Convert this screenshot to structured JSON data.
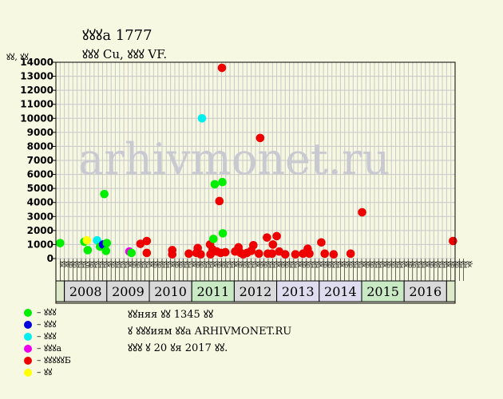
{
  "header": {
    "title": "ꙋꙋꙋa 1777",
    "subtitle": "ꙋꙋꙋ Cu, ꙋꙋꙋ VF."
  },
  "info": {
    "line1": "ꙋꙋняя ꙋꙋ 1345 ꙋꙋ",
    "line2": "ꙋ ꙋꙋꙋиям ꙋꙋа ARHIVMONET.RU",
    "line3": "ꙋꙋꙋ ꙋ 20 ꙋя 2017 ꙋꙋ."
  },
  "watermark": "arhivmonet.ru",
  "colors": {
    "background": "#f7f8e2",
    "plot_background": "#f7f8e2",
    "grid": "#c8c8c8",
    "year_band_a": "#dde9c8",
    "year_band_b": "#d6d6e8"
  },
  "legend": [
    {
      "label": "– ꙋꙋꙋ",
      "color": "#00ee00"
    },
    {
      "label": "– ꙋꙋꙋ",
      "color": "#0000dd"
    },
    {
      "label": "– ꙋꙋꙋ",
      "color": "#00eeee"
    },
    {
      "label": "– ꙋꙋꙋa",
      "color": "#ee00ee"
    },
    {
      "label": "– ꙋꙋꙋꙋꙋБ",
      "color": "#ee0000"
    },
    {
      "label": "– ꙋꙋ",
      "color": "#ffff00"
    }
  ],
  "chart_data": {
    "type": "scatter",
    "ylabel": "ꙋꙋ, ꙋꙋ",
    "ylim": [
      0,
      14000
    ],
    "yticks": [
      0,
      1000,
      2000,
      3000,
      4000,
      5000,
      6000,
      7000,
      8000,
      9000,
      10000,
      11000,
      12000,
      13000,
      14000
    ],
    "grid": true,
    "month_labels": [
      "ꙋк",
      "ꙋк",
      "ꙋр",
      "ꙋр",
      "ꙋн",
      "ꙋн",
      "ꙋл",
      "ꙋр",
      "ꙋн",
      "ꙋн",
      "ꙋн",
      "ꙋк",
      "ꙋр",
      "ꙋн",
      "ꙋн",
      "ꙋн",
      "ꙋк",
      "ꙋр",
      "ꙋр",
      "ꙋн",
      "ꙋн",
      "ꙋк",
      "ꙋр",
      "ꙋр",
      "ꙋн",
      "ꙋн",
      "ꙋк",
      "ꙋр",
      "ꙋр",
      "ꙋн",
      "ꙋн",
      "ꙋк",
      "ꙋр",
      "ꙋр",
      "ꙋн",
      "ꙋн",
      "ꙋк",
      "ꙋр",
      "ꙋр",
      "ꙋн",
      "ꙋн",
      "ꙋк",
      "ꙋр",
      "ꙋр",
      "ꙋн",
      "ꙋн",
      "ꙋк",
      "ꙋр",
      "ꙋр",
      "ꙋн",
      "ꙋн",
      "ꙋк",
      "ꙋр",
      "ꙋр",
      "ꙋн",
      "ꙋн",
      "ꙋк",
      "ꙋр",
      "ꙋр",
      "ꙋн",
      "ꙋн",
      "ꙋк",
      "ꙋр",
      "ꙋр",
      "ꙋн",
      "ꙋн",
      "ꙋк",
      "ꙋр",
      "ꙋр",
      "ꙋн",
      "ꙋн",
      "ꙋк",
      "ꙋр",
      "ꙋр",
      "ꙋн",
      "ꙋн",
      "ꙋк",
      "ꙋр",
      "ꙋр",
      "ꙋн",
      "ꙋн",
      "ꙋк",
      "ꙋр",
      "ꙋр",
      "ꙋн",
      "ꙋн",
      "ꙋк",
      "ꙋр",
      "ꙋр",
      "ꙋн",
      "ꙋн",
      "ꙋк",
      "ꙋр",
      "ꙋр",
      "ꙋн",
      "ꙋн",
      "ꙋк"
    ],
    "years": [
      {
        "label": "",
        "start": 0,
        "end": 2
      },
      {
        "label": "2008",
        "start": 2,
        "end": 12
      },
      {
        "label": "2009",
        "start": 12,
        "end": 22
      },
      {
        "label": "2010",
        "start": 22,
        "end": 32
      },
      {
        "label": "2011",
        "start": 32,
        "end": 42
      },
      {
        "label": "2012",
        "start": 42,
        "end": 52
      },
      {
        "label": "2013",
        "start": 52,
        "end": 62
      },
      {
        "label": "2014",
        "start": 62,
        "end": 72
      },
      {
        "label": "2015",
        "start": 72,
        "end": 82
      },
      {
        "label": "2016",
        "start": 82,
        "end": 92
      },
      {
        "label": "",
        "start": 92,
        "end": 94
      }
    ],
    "n_slots": 94,
    "points": [
      {
        "x": 0.5,
        "y": 1100,
        "cat": 0
      },
      {
        "x": 6.2,
        "y": 1200,
        "cat": 0
      },
      {
        "x": 7.0,
        "y": 600,
        "cat": 0
      },
      {
        "x": 6.8,
        "y": 1300,
        "cat": 5
      },
      {
        "x": 9.2,
        "y": 1300,
        "cat": 2
      },
      {
        "x": 9.9,
        "y": 850,
        "cat": 0
      },
      {
        "x": 10.6,
        "y": 1000,
        "cat": 1
      },
      {
        "x": 10.9,
        "y": 4600,
        "cat": 0
      },
      {
        "x": 11.5,
        "y": 1100,
        "cat": 0
      },
      {
        "x": 11.3,
        "y": 550,
        "cat": 0
      },
      {
        "x": 16.8,
        "y": 500,
        "cat": 3
      },
      {
        "x": 17.3,
        "y": 400,
        "cat": 0
      },
      {
        "x": 19.4,
        "y": 1050,
        "cat": 4
      },
      {
        "x": 20.9,
        "y": 1250,
        "cat": 4
      },
      {
        "x": 20.9,
        "y": 400,
        "cat": 4
      },
      {
        "x": 26.9,
        "y": 600,
        "cat": 4
      },
      {
        "x": 26.9,
        "y": 300,
        "cat": 4
      },
      {
        "x": 30.8,
        "y": 350,
        "cat": 4
      },
      {
        "x": 32.6,
        "y": 400,
        "cat": 4
      },
      {
        "x": 32.9,
        "y": 750,
        "cat": 4
      },
      {
        "x": 33.6,
        "y": 300,
        "cat": 4
      },
      {
        "x": 33.9,
        "y": 10000,
        "cat": 2
      },
      {
        "x": 35.8,
        "y": 1000,
        "cat": 4
      },
      {
        "x": 36.6,
        "y": 1400,
        "cat": 0
      },
      {
        "x": 36.4,
        "y": 650,
        "cat": 4
      },
      {
        "x": 35.9,
        "y": 300,
        "cat": 4
      },
      {
        "x": 36.9,
        "y": 5300,
        "cat": 0
      },
      {
        "x": 37.4,
        "y": 500,
        "cat": 4
      },
      {
        "x": 38.0,
        "y": 4100,
        "cat": 4
      },
      {
        "x": 38.3,
        "y": 400,
        "cat": 4
      },
      {
        "x": 38.6,
        "y": 13600,
        "cat": 4
      },
      {
        "x": 38.7,
        "y": 5450,
        "cat": 0
      },
      {
        "x": 38.8,
        "y": 1800,
        "cat": 0
      },
      {
        "x": 39.4,
        "y": 450,
        "cat": 4
      },
      {
        "x": 41.7,
        "y": 500,
        "cat": 4
      },
      {
        "x": 42.5,
        "y": 800,
        "cat": 4
      },
      {
        "x": 43.0,
        "y": 400,
        "cat": 4
      },
      {
        "x": 43.6,
        "y": 300,
        "cat": 4
      },
      {
        "x": 44.5,
        "y": 400,
        "cat": 4
      },
      {
        "x": 45.5,
        "y": 550,
        "cat": 4
      },
      {
        "x": 46.0,
        "y": 950,
        "cat": 4
      },
      {
        "x": 47.3,
        "y": 350,
        "cat": 4
      },
      {
        "x": 47.6,
        "y": 8600,
        "cat": 4
      },
      {
        "x": 49.2,
        "y": 1500,
        "cat": 4
      },
      {
        "x": 49.4,
        "y": 350,
        "cat": 4
      },
      {
        "x": 50.4,
        "y": 350,
        "cat": 4
      },
      {
        "x": 50.6,
        "y": 1000,
        "cat": 4
      },
      {
        "x": 51.5,
        "y": 1600,
        "cat": 4
      },
      {
        "x": 52.1,
        "y": 500,
        "cat": 4
      },
      {
        "x": 53.5,
        "y": 300,
        "cat": 4
      },
      {
        "x": 55.9,
        "y": 300,
        "cat": 4
      },
      {
        "x": 57.7,
        "y": 350,
        "cat": 4
      },
      {
        "x": 58.8,
        "y": 700,
        "cat": 4
      },
      {
        "x": 59.2,
        "y": 350,
        "cat": 4
      },
      {
        "x": 62.0,
        "y": 1150,
        "cat": 4
      },
      {
        "x": 62.8,
        "y": 350,
        "cat": 4
      },
      {
        "x": 64.9,
        "y": 300,
        "cat": 4
      },
      {
        "x": 68.9,
        "y": 350,
        "cat": 4
      },
      {
        "x": 71.6,
        "y": 3300,
        "cat": 4
      },
      {
        "x": 93.0,
        "y": 1250,
        "cat": 4
      }
    ]
  }
}
